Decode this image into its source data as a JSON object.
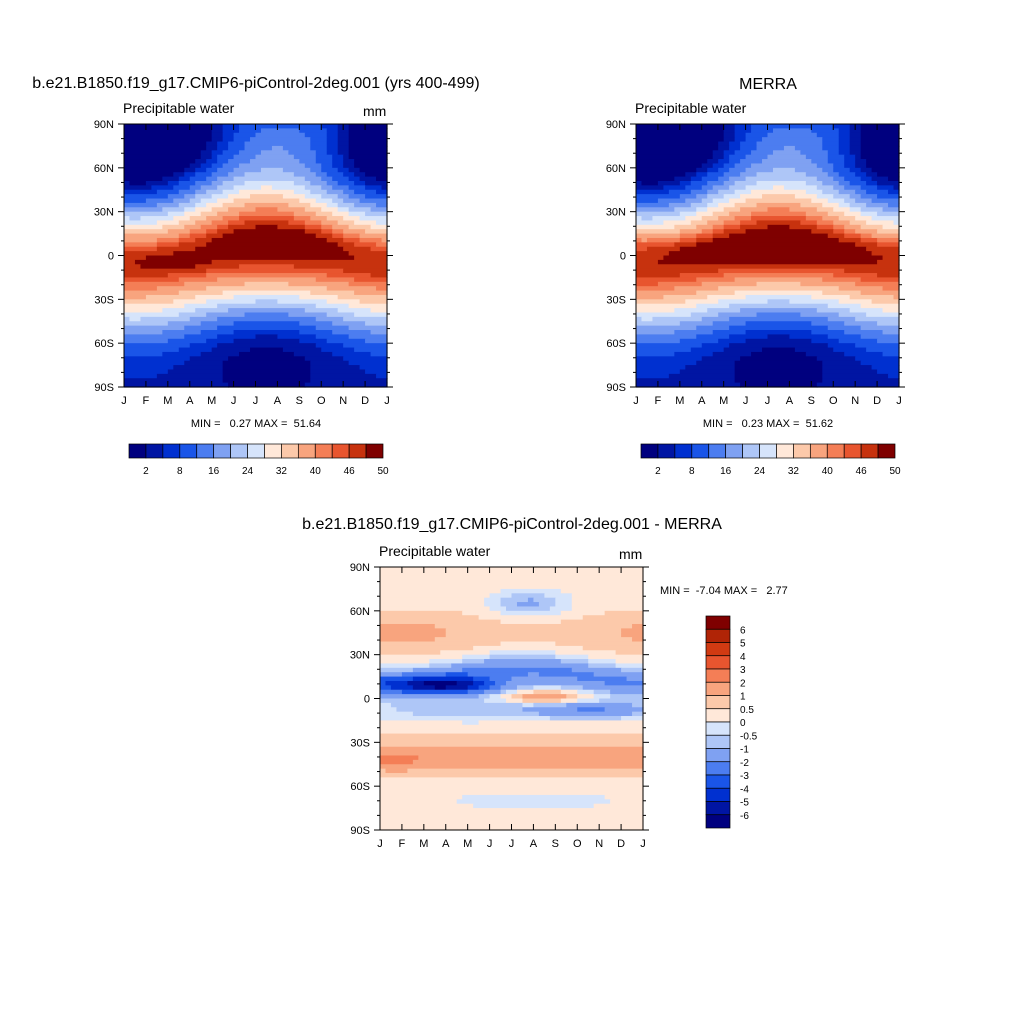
{
  "figure": {
    "panels": [
      {
        "title": "b.e21.B1850.f19_g17.CMIP6-piControl-2deg.001 (yrs 400-499)",
        "variable": "Precipitable water",
        "units": "mm",
        "min_max": "MIN =   0.27 MAX =  51.64",
        "colorbar_labels": [
          "2",
          "8",
          "16",
          "24",
          "32",
          "40",
          "46",
          "50"
        ]
      },
      {
        "title": "MERRA",
        "variable": "Precipitable water",
        "units": "",
        "min_max": "MIN =   0.23 MAX =  51.62",
        "colorbar_labels": [
          "2",
          "8",
          "16",
          "24",
          "32",
          "40",
          "46",
          "50"
        ]
      },
      {
        "title": "b.e21.B1850.f19_g17.CMIP6-piControl-2deg.001 - MERRA",
        "variable": "Precipitable water",
        "units": "mm",
        "min_max": "MIN =  -7.04 MAX =   2.77",
        "colorbar_labels": [
          "6",
          "5",
          "4",
          "3",
          "2",
          "1",
          "0.5",
          "0",
          "-0.5",
          "-1",
          "-2",
          "-3",
          "-4",
          "-5",
          "-6"
        ]
      }
    ],
    "month_ticks": [
      "J",
      "F",
      "M",
      "A",
      "M",
      "J",
      "J",
      "A",
      "S",
      "O",
      "N",
      "D",
      "J"
    ],
    "lat_ticks": [
      "90N",
      "60N",
      "30N",
      "0",
      "30S",
      "60S",
      "90S"
    ],
    "palettes": {
      "absolute": [
        "#00007f",
        "#0015a3",
        "#0030d0",
        "#1a55e8",
        "#4c7df0",
        "#7fa1f2",
        "#aec6f7",
        "#d6e4fb",
        "#ffe8d9",
        "#fcc9aa",
        "#f8a47e",
        "#f47e56",
        "#e8552f",
        "#c7320e",
        "#7f0000"
      ],
      "difference": [
        "#00007f",
        "#0015a3",
        "#0030d0",
        "#1a55e8",
        "#4c7df0",
        "#7fa1f2",
        "#aec6f7",
        "#d6e4fb",
        "#ffe8d9",
        "#fcc9aa",
        "#f8a47e",
        "#f47e56",
        "#e8552f",
        "#d13a12",
        "#b02406",
        "#7f0000"
      ]
    }
  },
  "chart_data": [
    {
      "type": "heatmap",
      "title": "b.e21.B1850.f19_g17.CMIP6-piControl-2deg.001 (yrs 400-499)",
      "variable": "Precipitable water",
      "units": "mm",
      "x": [
        "J",
        "F",
        "M",
        "A",
        "M",
        "J",
        "J",
        "A",
        "S",
        "O",
        "N",
        "D",
        "J"
      ],
      "y": [
        "90N",
        "60N",
        "30N",
        "0",
        "30S",
        "60S",
        "90S"
      ],
      "min": 0.27,
      "max": 51.64,
      "levels": [
        2,
        5,
        8,
        12,
        16,
        20,
        24,
        28,
        32,
        36,
        40,
        43,
        46,
        50
      ],
      "field": "zonal-mean seasonal cycle; maximum (>50 mm) near 8N in Jul-Aug, secondary max near 5S in Feb-Mar; <2 mm at high latitudes"
    },
    {
      "type": "heatmap",
      "title": "MERRA",
      "variable": "Precipitable water",
      "x": [
        "J",
        "F",
        "M",
        "A",
        "M",
        "J",
        "J",
        "A",
        "S",
        "O",
        "N",
        "D",
        "J"
      ],
      "y": [
        "90N",
        "60N",
        "30N",
        "0",
        "30S",
        "60S",
        "90S"
      ],
      "min": 0.23,
      "max": 51.62,
      "levels": [
        2,
        5,
        8,
        12,
        16,
        20,
        24,
        28,
        32,
        36,
        40,
        43,
        46,
        50
      ],
      "field": "zonal-mean seasonal cycle; band of maximum (>50 mm) near 5N from Apr through Sep"
    },
    {
      "type": "heatmap",
      "title": "b.e21.B1850.f19_g17.CMIP6-piControl-2deg.001 - MERRA",
      "variable": "Precipitable water",
      "units": "mm",
      "x": [
        "J",
        "F",
        "M",
        "A",
        "M",
        "J",
        "J",
        "A",
        "S",
        "O",
        "N",
        "D",
        "J"
      ],
      "y": [
        "90N",
        "60N",
        "30N",
        "0",
        "30S",
        "60S",
        "90S"
      ],
      "min": -7.04,
      "max": 2.77,
      "levels": [
        -6,
        -5,
        -4,
        -3,
        -2,
        -1,
        -0.5,
        0,
        0.5,
        1,
        2,
        3,
        4,
        5,
        6
      ],
      "field": "mostly 0 to 1 mm; strong negative (-4 to -7) band 5N-15N Feb-May; negative -1 to -3 near 10-20N and 5-20S; -1 patch near 65N Jun-Aug; +1 to +2 bands near 40-50N and 30-50S"
    }
  ]
}
